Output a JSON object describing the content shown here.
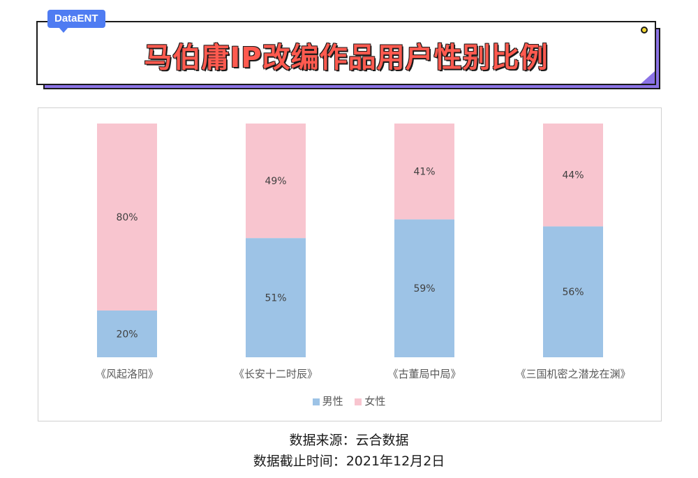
{
  "header": {
    "brand": "DataENT",
    "title": "马伯庸IP改编作品用户性别比例"
  },
  "chart_data": {
    "type": "bar",
    "stacked": true,
    "percent": true,
    "categories": [
      "《风起洛阳》",
      "《长安十二时辰》",
      "《古董局中局》",
      "《三国机密之潜龙在渊》"
    ],
    "series": [
      {
        "name": "男性",
        "color": "#9dc3e6",
        "values": [
          20,
          51,
          59,
          56
        ],
        "labels": [
          "20%",
          "51%",
          "59%",
          "56%"
        ]
      },
      {
        "name": "女性",
        "color": "#f8c5cf",
        "values": [
          80,
          49,
          41,
          44
        ],
        "labels": [
          "80%",
          "49%",
          "41%",
          "44%"
        ]
      }
    ],
    "ylim": [
      0,
      100
    ],
    "grid": false,
    "legend_position": "bottom"
  },
  "footer": {
    "source": "数据来源：云合数据",
    "cutoff": "数据截止时间：2021年12月2日"
  }
}
